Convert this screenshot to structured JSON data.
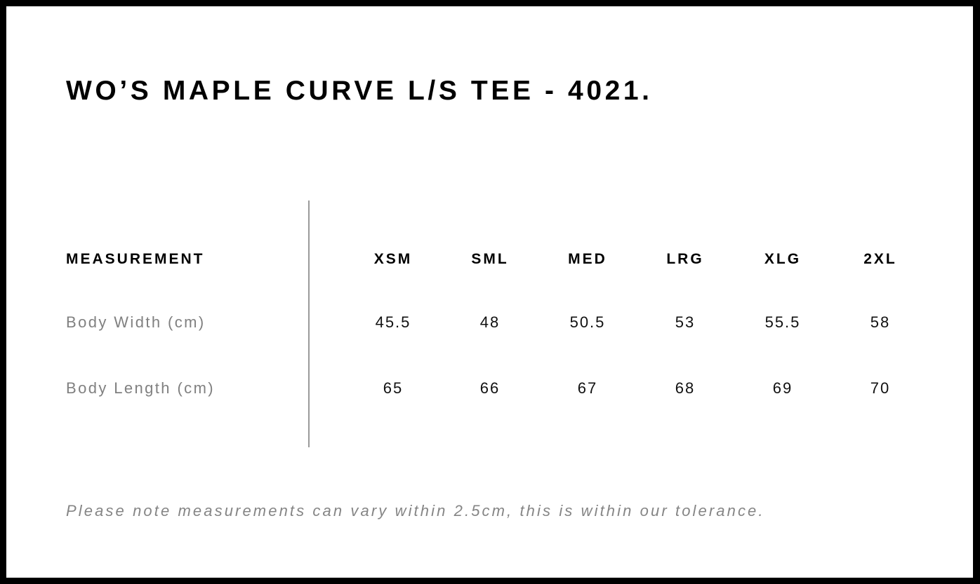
{
  "title": "WO’S MAPLE CURVE L/S TEE - 4021.",
  "table": {
    "header": {
      "label": "MEASUREMENT",
      "sizes": [
        "XSM",
        "SML",
        "MED",
        "LRG",
        "XLG",
        "2XL"
      ]
    },
    "rows": [
      {
        "label": "Body Width (cm)",
        "values": [
          "45.5",
          "48",
          "50.5",
          "53",
          "55.5",
          "58"
        ]
      },
      {
        "label": "Body Length (cm)",
        "values": [
          "65",
          "66",
          "67",
          "68",
          "69",
          "70"
        ]
      }
    ]
  },
  "note": "Please note measurements can vary within 2.5cm, this is within our tolerance."
}
